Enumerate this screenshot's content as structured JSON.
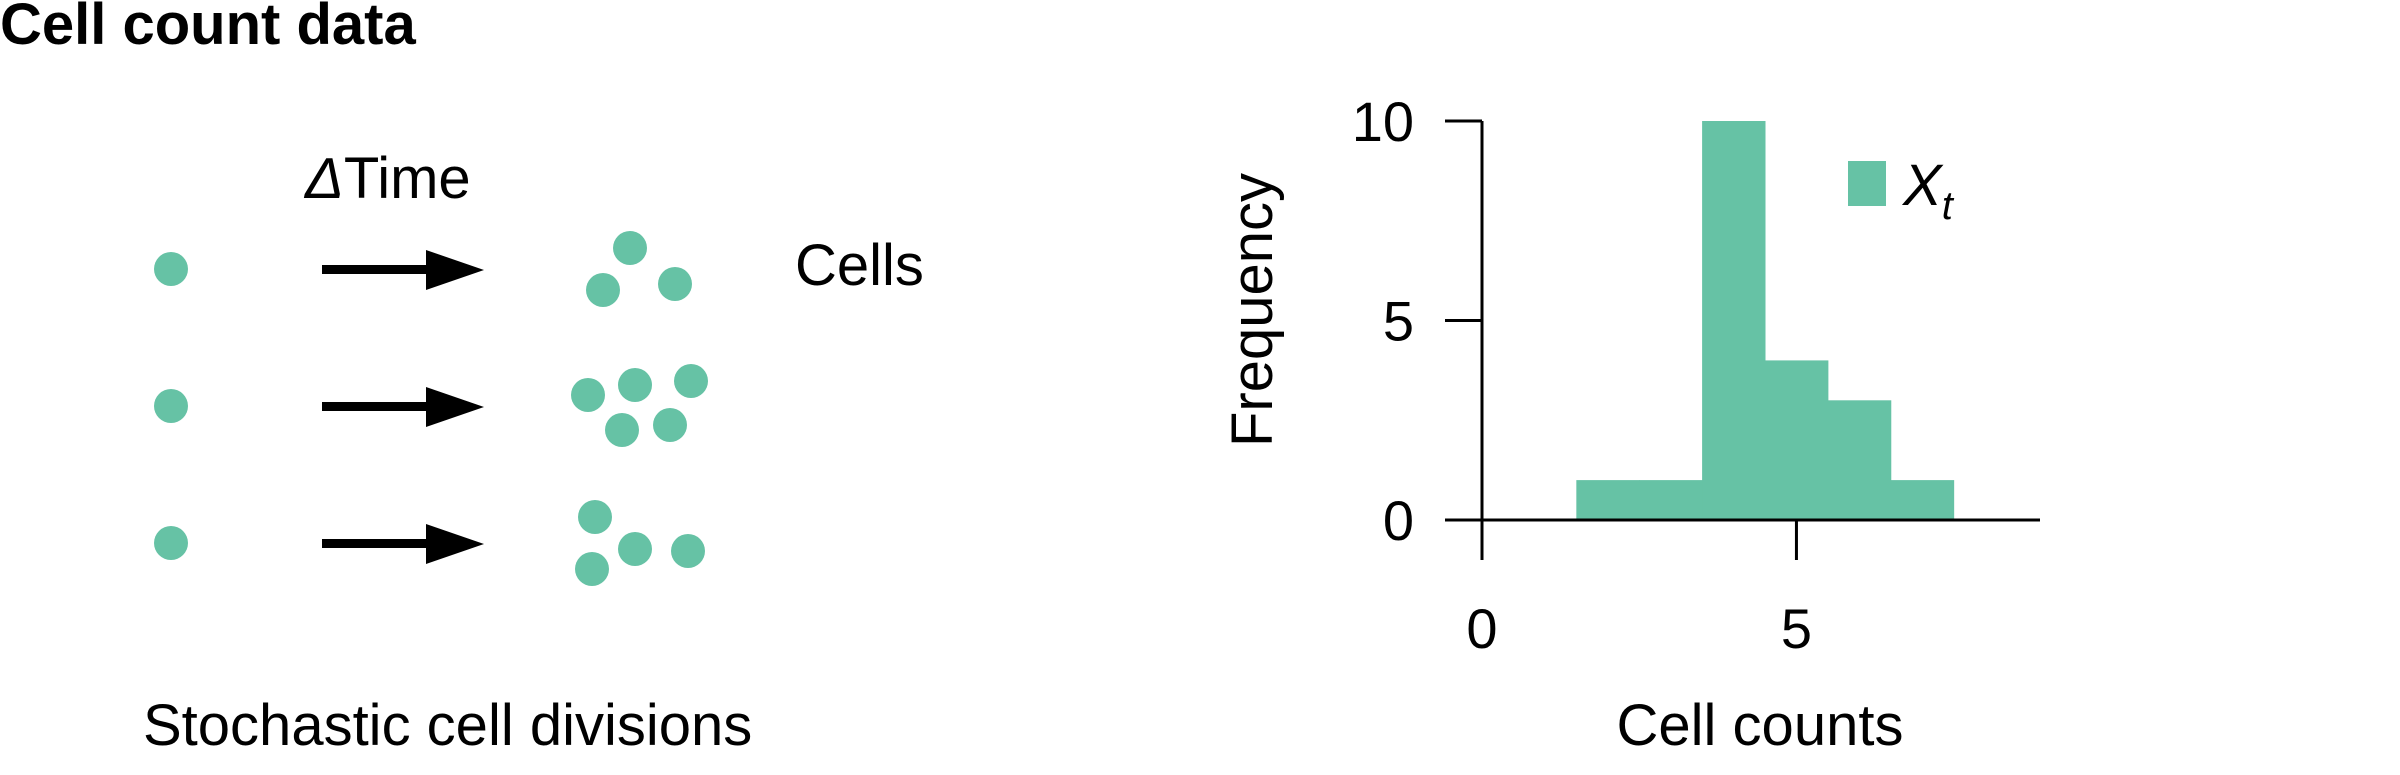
{
  "title": "Cell count data",
  "colors": {
    "cell": "#66c2a5",
    "ink": "#000000",
    "background": "#ffffff"
  },
  "diagram": {
    "arrow_label_symbol": "Δ",
    "arrow_label_word": "Time",
    "cells_label": "Cells",
    "caption": "Stochastic cell divisions",
    "rows": [
      {
        "start_cells": 1,
        "end_cells": 3
      },
      {
        "start_cells": 1,
        "end_cells": 5
      },
      {
        "start_cells": 1,
        "end_cells": 4
      }
    ]
  },
  "chart_data": {
    "type": "bar",
    "xlabel": "Cell counts",
    "ylabel": "Frequency",
    "x_ticks": [
      0,
      5
    ],
    "y_ticks": [
      0,
      5,
      10
    ],
    "xlim": [
      0,
      9
    ],
    "ylim": [
      0,
      10
    ],
    "bin_width": 1,
    "bins": [
      {
        "x": 2,
        "count": 1
      },
      {
        "x": 3,
        "count": 1
      },
      {
        "x": 4,
        "count": 10
      },
      {
        "x": 5,
        "count": 4
      },
      {
        "x": 6,
        "count": 3
      },
      {
        "x": 7,
        "count": 1
      }
    ],
    "legend": {
      "position": "top-right",
      "symbol": "X",
      "subscript": "t"
    }
  }
}
